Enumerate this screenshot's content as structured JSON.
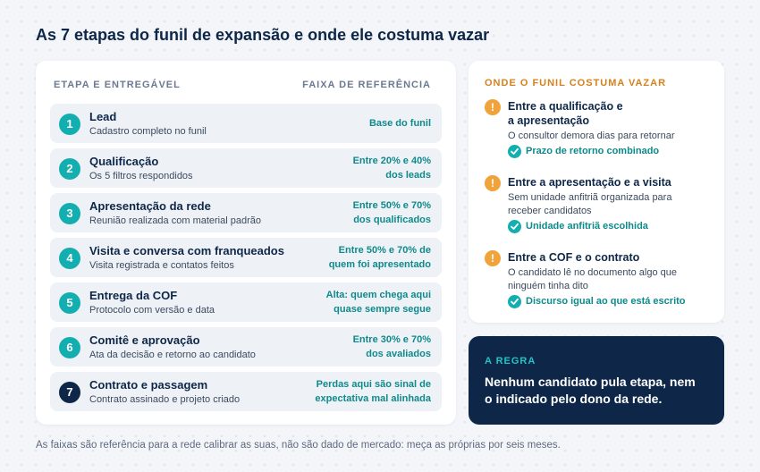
{
  "title": "As 7 etapas do funil de expansão e onde ele costuma vazar",
  "table": {
    "col_stage": "ETAPA E ENTREGÁVEL",
    "col_range": "FAIXA DE REFERÊNCIA",
    "steps": [
      {
        "num": "1",
        "title": "Lead",
        "sub": "Cadastro completo no funil",
        "range1": "Base do funil",
        "range2": ""
      },
      {
        "num": "2",
        "title": "Qualificação",
        "sub": "Os 5 filtros respondidos",
        "range1": "Entre 20% e 40%",
        "range2": "dos leads"
      },
      {
        "num": "3",
        "title": "Apresentação da rede",
        "sub": "Reunião realizada com material padrão",
        "range1": "Entre 50% e 70%",
        "range2": "dos qualificados"
      },
      {
        "num": "4",
        "title": "Visita e conversa com franqueados",
        "sub": "Visita registrada e contatos feitos",
        "range1": "Entre 50% e 70% de",
        "range2": "quem foi apresentado"
      },
      {
        "num": "5",
        "title": "Entrega da COF",
        "sub": "Protocolo com versão e data",
        "range1": "Alta: quem chega aqui",
        "range2": "quase sempre segue"
      },
      {
        "num": "6",
        "title": "Comitê e aprovação",
        "sub": "Ata da decisão e retorno ao candidato",
        "range1": "Entre 30% e 70%",
        "range2": "dos avaliados"
      },
      {
        "num": "7",
        "title": "Contrato e passagem",
        "sub": "Contrato assinado e projeto criado",
        "range1": "Perdas aqui são sinal de",
        "range2": "expectativa mal alinhada"
      }
    ]
  },
  "leaks": {
    "heading": "ONDE O FUNIL COSTUMA VAZAR",
    "items": [
      {
        "title1": "Entre a qualificação e",
        "title2": "a apresentação",
        "desc1": "O consultor demora dias para retornar",
        "desc2": "",
        "fix": "Prazo de retorno combinado"
      },
      {
        "title1": "Entre a apresentação e a visita",
        "title2": "",
        "desc1": "Sem unidade anfitriã organizada para",
        "desc2": "receber candidatos",
        "fix": "Unidade anfitriã escolhida"
      },
      {
        "title1": "Entre a COF e o contrato",
        "title2": "",
        "desc1": "O candidato lê no documento algo que",
        "desc2": "ninguém tinha dito",
        "fix": "Discurso igual ao que está escrito"
      }
    ]
  },
  "rule": {
    "heading": "A REGRA",
    "text1": "Nenhum candidato pula etapa, nem",
    "text2": "o indicado pelo dono da rede."
  },
  "footnote": "As faixas são referência para a rede calibrar as suas, não são dado de mercado: meça as próprias por seis meses.",
  "icons": {
    "warning": "exclamation-circle-icon",
    "check": "check-circle-icon"
  },
  "colors": {
    "teal": "#13aeb0",
    "navy": "#0e2748",
    "orange": "#f0a33a"
  }
}
